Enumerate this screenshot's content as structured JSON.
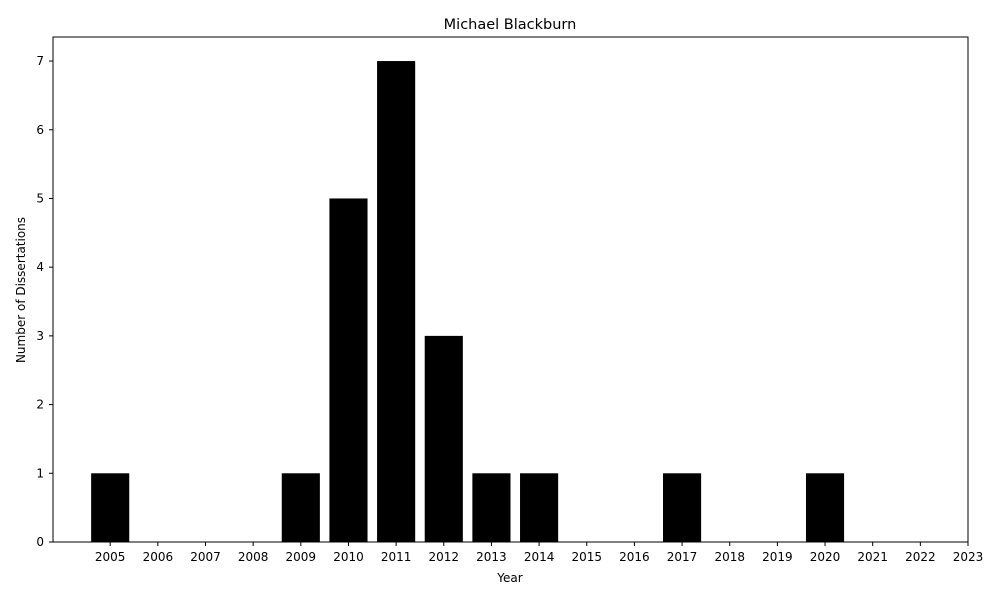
{
  "chart_data": {
    "type": "bar",
    "title": "Michael Blackburn",
    "xlabel": "Year",
    "ylabel": "Number of Dissertations",
    "bar_color": "#000000",
    "grid": false,
    "x_ticks": [
      2005,
      2006,
      2007,
      2008,
      2009,
      2010,
      2011,
      2012,
      2013,
      2014,
      2015,
      2016,
      2017,
      2018,
      2019,
      2020,
      2021,
      2022,
      2023
    ],
    "categories": [
      2005,
      2009,
      2010,
      2011,
      2012,
      2013,
      2014,
      2017,
      2020
    ],
    "values": [
      1,
      1,
      5,
      7,
      3,
      1,
      1,
      1,
      1
    ],
    "y_ticks": [
      0,
      1,
      2,
      3,
      4,
      5,
      6,
      7
    ],
    "ylim": [
      0,
      7.35
    ]
  }
}
